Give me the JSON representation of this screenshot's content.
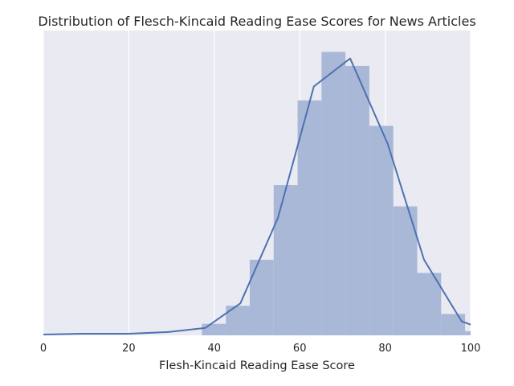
{
  "chart_data": {
    "type": "histogram",
    "title": "Distribution of Flesch-Kincaid Reading Ease Scores for News Articles",
    "xlabel": "Flesh-Kincaid Reading Ease Score",
    "ylabel": "",
    "xlim": [
      0,
      100
    ],
    "x_ticks": [
      0,
      20,
      40,
      60,
      80,
      100
    ],
    "y_ticks_shown": false,
    "grid": true,
    "bins": [
      {
        "x0": 37.1,
        "x1": 42.7,
        "density": 0.0014
      },
      {
        "x0": 42.7,
        "x1": 48.3,
        "density": 0.0036
      },
      {
        "x0": 48.3,
        "x1": 53.9,
        "density": 0.0092
      },
      {
        "x0": 53.9,
        "x1": 59.5,
        "density": 0.0183
      },
      {
        "x0": 59.5,
        "x1": 65.1,
        "density": 0.0286
      },
      {
        "x0": 65.1,
        "x1": 70.7,
        "density": 0.0345
      },
      {
        "x0": 70.7,
        "x1": 76.3,
        "density": 0.0328
      },
      {
        "x0": 76.3,
        "x1": 81.9,
        "density": 0.0255
      },
      {
        "x0": 81.9,
        "x1": 87.5,
        "density": 0.0157
      },
      {
        "x0": 87.5,
        "x1": 93.1,
        "density": 0.0076
      },
      {
        "x0": 93.1,
        "x1": 98.7,
        "density": 0.0026
      },
      {
        "x0": 98.7,
        "x1": 104.3,
        "density": 0.0005
      }
    ],
    "kde": {
      "x": [
        0,
        8.8,
        20,
        29.2,
        37.9,
        46.1,
        54.9,
        63.3,
        71.8,
        80.6,
        89.1,
        97.9,
        100
      ],
      "y": [
        0.0001,
        0.0002,
        0.0002,
        0.0004,
        0.0009,
        0.0039,
        0.0143,
        0.0303,
        0.0337,
        0.0233,
        0.0092,
        0.0017,
        0.0013
      ]
    },
    "ylim": [
      0,
      0.0371
    ],
    "colors": {
      "background": "#eaeaf2",
      "bars": "#aab8d8",
      "kde_line": "#4c72b0",
      "grid": "#ffffff"
    }
  }
}
